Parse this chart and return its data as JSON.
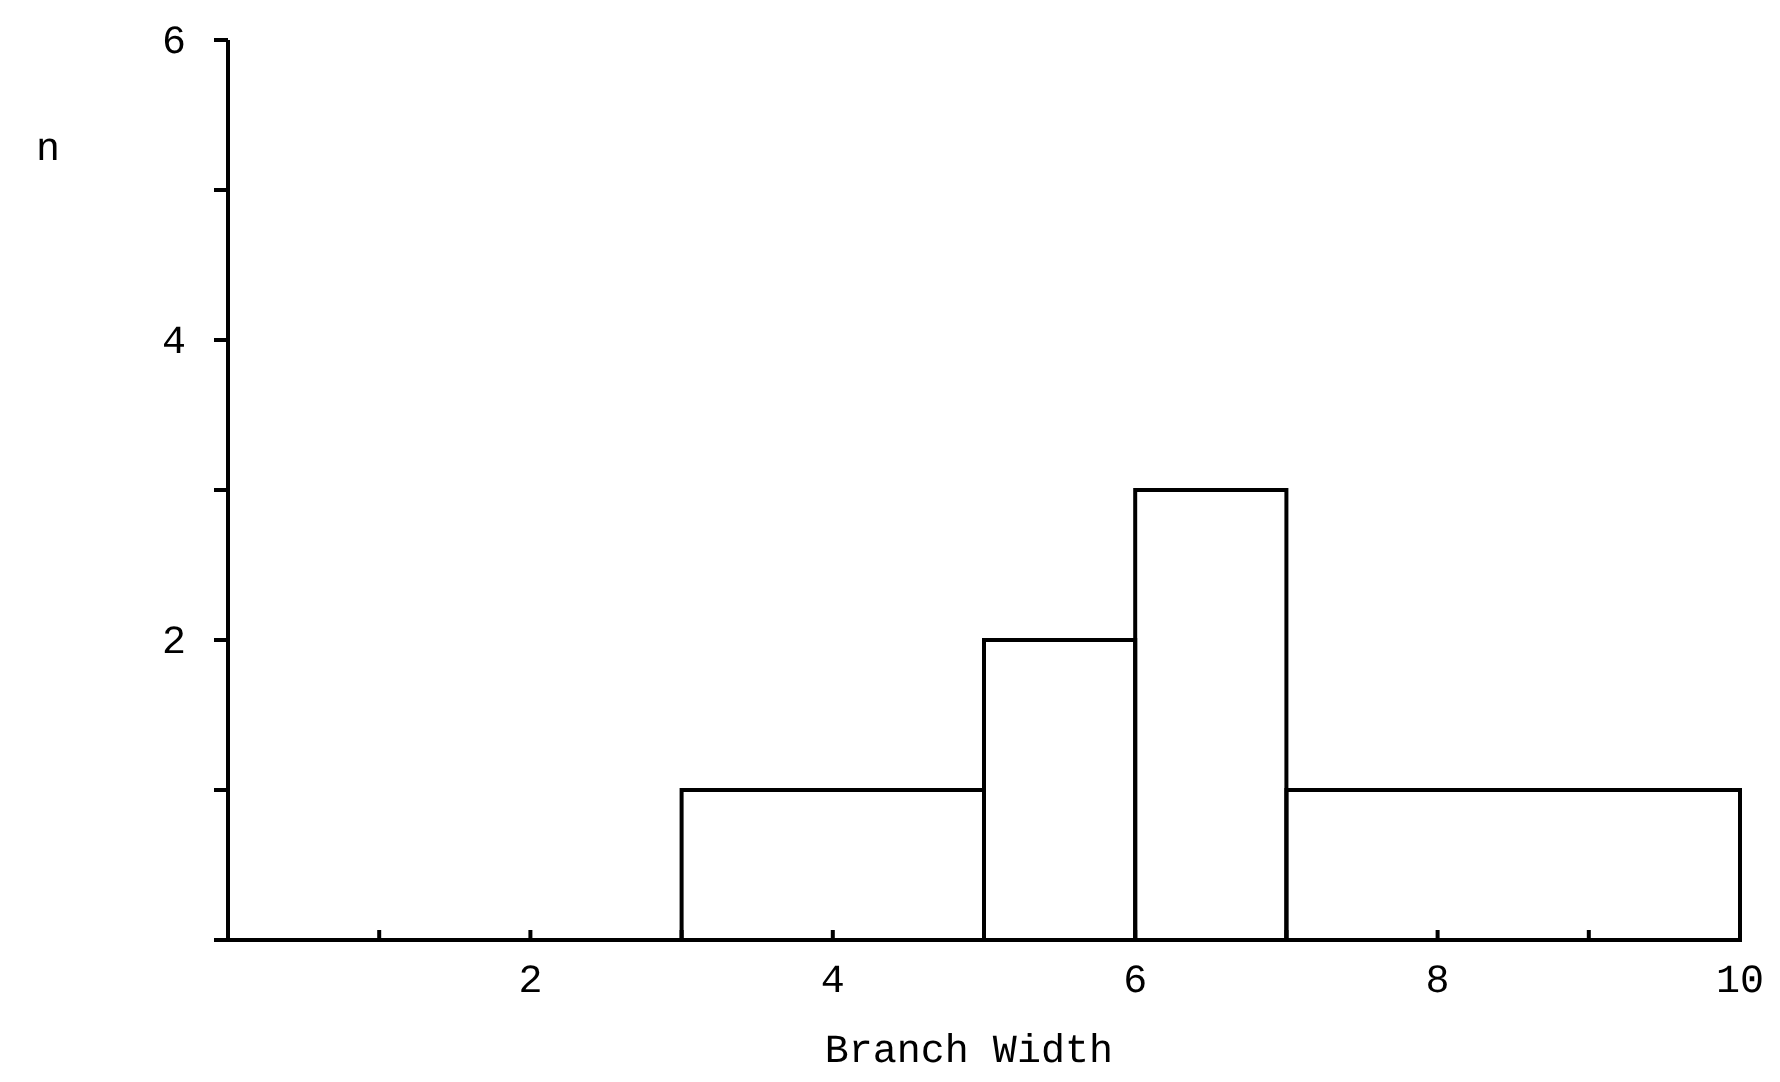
{
  "chart_data": {
    "type": "histogram",
    "xlabel": "Branch Width",
    "ylabel": "n",
    "bins": [
      3,
      5,
      6,
      7,
      10
    ],
    "values": [
      1,
      2,
      3,
      1
    ],
    "color": "#000000",
    "xlim": [
      0,
      10
    ],
    "xticks": [
      {
        "value": 0,
        "label": null
      },
      {
        "value": 1,
        "label": null
      },
      2,
      {
        "value": 3,
        "label": null
      },
      4,
      {
        "value": 5,
        "label": null
      },
      6,
      {
        "value": 7,
        "label": null
      },
      8,
      {
        "value": 9,
        "label": null
      },
      10
    ],
    "ylim": [
      0,
      6
    ],
    "yticks": [
      {
        "value": 0,
        "label": null
      },
      {
        "value": 1,
        "label": null
      },
      2,
      {
        "value": 3,
        "label": null
      },
      4,
      {
        "value": 5,
        "label": null
      },
      6
    ],
    "grid": false
  }
}
